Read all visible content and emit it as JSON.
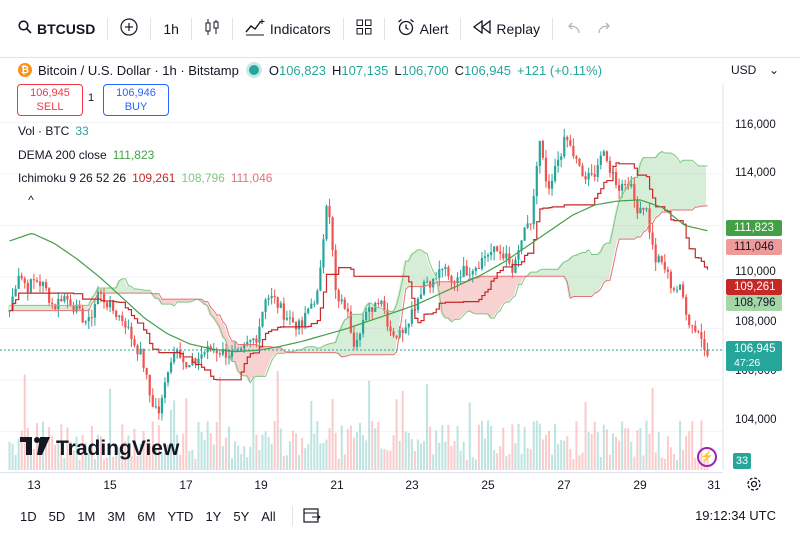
{
  "toolbar": {
    "symbol": "BTCUSD",
    "add_symbol": "+",
    "interval": "1h",
    "indicators_label": "Indicators",
    "alert_label": "Alert",
    "replay_label": "Replay"
  },
  "legend": {
    "title": "Bitcoin / U.S. Dollar · 1h · Bitstamp",
    "logo_letter": "₿",
    "o_key": "O",
    "o_val": "106,823",
    "h_key": "H",
    "h_val": "107,135",
    "l_key": "L",
    "l_val": "106,700",
    "c_key": "C",
    "c_val": "106,945",
    "change": "+121 (+0.11%)"
  },
  "trade": {
    "sell_price": "106,945",
    "sell_label": "SELL",
    "spread": "1",
    "buy_price": "106,946",
    "buy_label": "BUY"
  },
  "indicators": {
    "vol_name": "Vol · BTC",
    "vol_val": "33",
    "dema_name": "DEMA 200 close",
    "dema_val": "111,823",
    "ichi_name": "Ichimoku 9 26 52 26",
    "ichi_v1": "109,261",
    "ichi_v2": "108,796",
    "ichi_v3": "111,046",
    "collapse": "^"
  },
  "currency": "USD",
  "price_axis": {
    "ticks": [
      "116,000",
      "114,000",
      "110,000",
      "108,000",
      "104,000"
    ],
    "tick_106": "106,000",
    "label_dema": "111,823",
    "label_spanb": "111,046",
    "label_base": "109,261",
    "label_spana": "108,796",
    "label_last": "106,945",
    "label_countdown": "47:26",
    "vol_label": "33"
  },
  "time_axis": [
    "13",
    "15",
    "17",
    "19",
    "21",
    "23",
    "25",
    "27",
    "29",
    "31"
  ],
  "ranges": [
    "1D",
    "5D",
    "1M",
    "3M",
    "6M",
    "YTD",
    "1Y",
    "5Y",
    "All"
  ],
  "clock": "19:12:34 UTC",
  "brand": "TradingView",
  "colors": {
    "up": "#26a69a",
    "down": "#ef5350",
    "dema": "#43a047",
    "base": "#c62828",
    "span_a": "#81c784",
    "span_b": "#e57373",
    "cloud_up": "#a5d6a7",
    "cloud_down": "#ef9a9a"
  },
  "chart_data": {
    "type": "candlestick",
    "symbol": "BTCUSD",
    "interval": "1h",
    "ylim": [
      102500,
      117500
    ],
    "x_ticks": [
      "13",
      "15",
      "17",
      "19",
      "21",
      "23",
      "25",
      "27",
      "29",
      "31"
    ],
    "close_path": [
      108700,
      110200,
      109600,
      109900,
      109600,
      108800,
      109300,
      109000,
      108500,
      108200,
      109400,
      109000,
      108600,
      108300,
      107500,
      106900,
      105200,
      104700,
      106600,
      107400,
      106400,
      106700,
      107100,
      107200,
      107100,
      107000,
      106900,
      107400,
      107700,
      109300,
      109100,
      108600,
      108300,
      108000,
      108900,
      109400,
      113500,
      109000,
      108900,
      107500,
      108300,
      108800,
      109300,
      108000,
      107700,
      108300,
      109000,
      109900,
      109800,
      110400,
      109700,
      110200,
      110300,
      110500,
      110900,
      111000,
      110900,
      110100,
      111500,
      112100,
      115200,
      113100,
      114500,
      115400,
      114600,
      113800,
      113900,
      114800,
      114200,
      113500,
      113800,
      112700,
      112800,
      110700,
      110500,
      109600,
      109500,
      108200,
      107900,
      106900
    ],
    "dema_200": [
      111400,
      111700,
      111300,
      110700,
      110000,
      109200,
      108400,
      107800,
      107400,
      107200,
      107100,
      107150,
      107300,
      107500,
      107750,
      108000,
      108300,
      108600,
      108900,
      109300,
      109700,
      110100,
      110600,
      111200,
      111800,
      112400,
      112800,
      112950,
      113000,
      112700,
      112000,
      111800
    ],
    "last_price": 106945
  }
}
